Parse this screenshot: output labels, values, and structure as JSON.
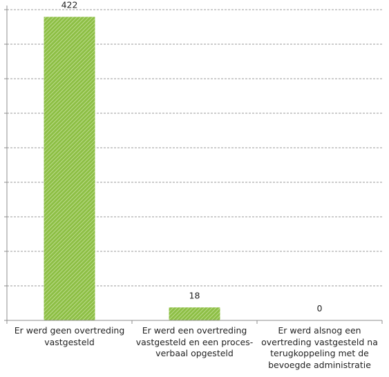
{
  "chart_data": {
    "type": "bar",
    "title": "",
    "xlabel": "",
    "ylabel": "",
    "categories": [
      "Er werd geen overtreding vastgesteld",
      "Er werd een overtreding vastgesteld en een proces-verbaal opgesteld",
      "Er werd alsnog een overtreding vastgesteld na terugkoppeling met de bevoegde administratie"
    ],
    "values": [
      422,
      18,
      0
    ],
    "data_labels": [
      "422",
      "18",
      "0"
    ],
    "ylim": [
      0,
      450
    ],
    "grid": true,
    "colors": {
      "bar": "#8dbf45",
      "bar_hatch": "#c9e2a0",
      "grid": "#9a9a9a",
      "axis": "#8c8c8c"
    }
  }
}
